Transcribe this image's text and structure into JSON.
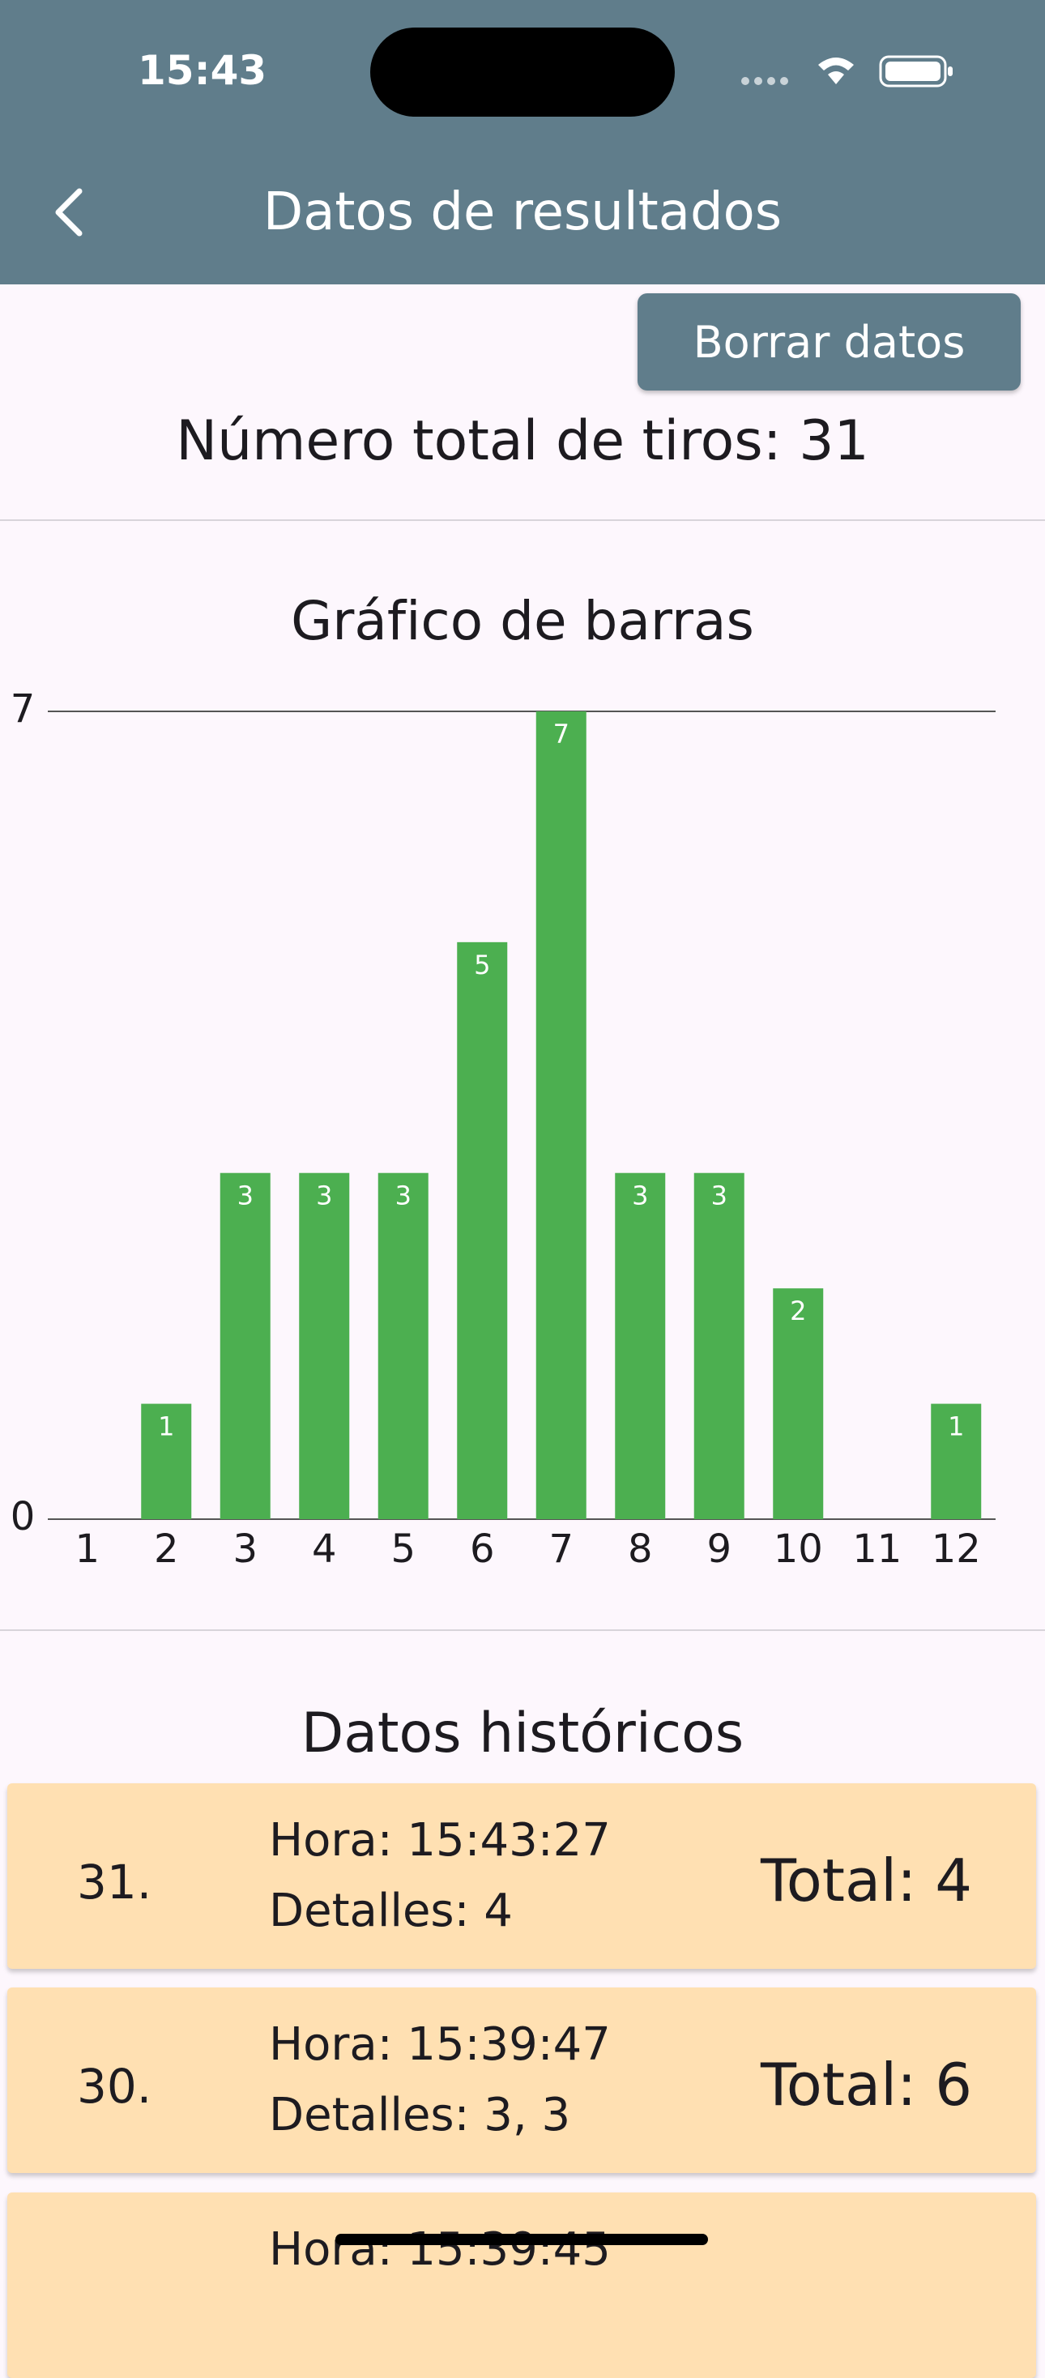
{
  "status_bar": {
    "time": "15:43"
  },
  "app_bar": {
    "title": "Datos de resultados"
  },
  "button": "Borrar datos",
  "total_text": "Número total de tiros: 31",
  "chart_data": {
    "type": "bar",
    "title": "Gráfico de barras",
    "categories": [
      "1",
      "2",
      "3",
      "4",
      "5",
      "6",
      "7",
      "8",
      "9",
      "10",
      "11",
      "12"
    ],
    "values": [
      0,
      1,
      3,
      3,
      3,
      5,
      7,
      3,
      3,
      2,
      0,
      1
    ],
    "color": "#4caf50",
    "ylim": [
      0,
      7
    ],
    "yticks": [
      0,
      7
    ],
    "grid": true
  },
  "history": {
    "title": "Datos históricos",
    "items": [
      {
        "number": "31.",
        "hora": "Hora: 15:43:27",
        "detalles": "Detalles: 4",
        "total": "Total: 4"
      },
      {
        "number": "30.",
        "hora": "Hora: 15:39:47",
        "detalles": "Detalles: 3, 3",
        "total": "Total: 6"
      },
      {
        "hora": "Hora: 15:39:45"
      }
    ]
  }
}
